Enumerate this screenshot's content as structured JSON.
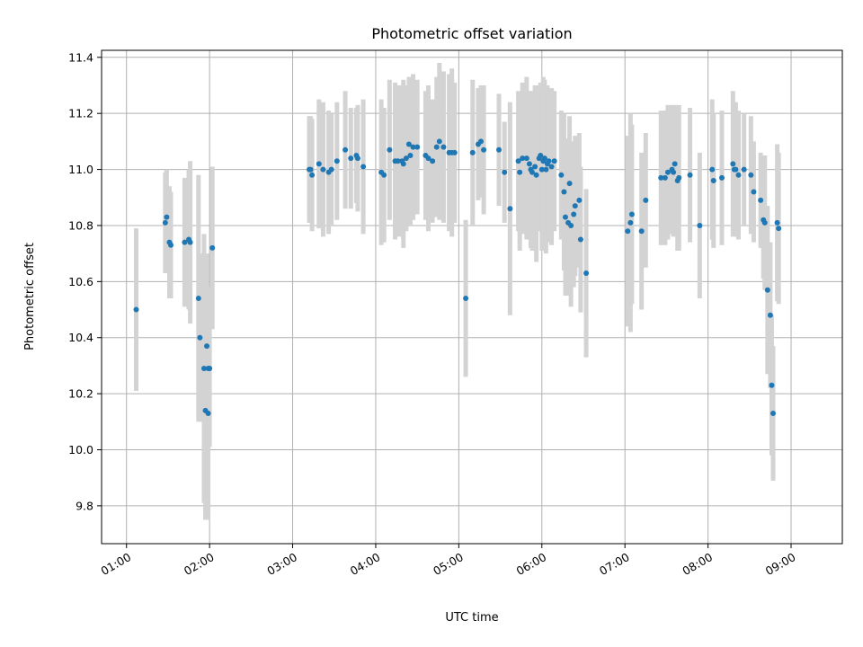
{
  "chart_data": {
    "type": "scatter",
    "title": "Photometric offset variation",
    "xlabel": "UTC time",
    "ylabel": "Photometric offset",
    "xlim": [
      "00:42",
      "09:37"
    ],
    "ylim": [
      9.665,
      11.425
    ],
    "x_tick_labels": [
      "01:00",
      "02:00",
      "03:00",
      "04:00",
      "05:00",
      "06:00",
      "07:00",
      "08:00",
      "09:00"
    ],
    "y_tick_labels": [
      "9.8",
      "10.0",
      "10.2",
      "10.4",
      "10.6",
      "10.8",
      "11.0",
      "11.2",
      "11.4"
    ],
    "y_ticks": [
      9.8,
      10.0,
      10.2,
      10.4,
      10.6,
      10.8,
      11.0,
      11.2,
      11.4
    ],
    "grid": true,
    "colors": {
      "point": "#1f77b4",
      "errorbar": "#d3d3d3",
      "grid": "#b0b0b0"
    },
    "series": [
      {
        "x": [
          "01:07",
          "01:28",
          "01:29",
          "01:31",
          "01:32",
          "01:42",
          "01:45",
          "01:46",
          "01:52",
          "01:53",
          "01:56",
          "01:57",
          "01:58",
          "01:59",
          "01:59",
          "02:00",
          "02:02",
          "03:12",
          "03:13",
          "03:14",
          "03:19",
          "03:22",
          "03:26",
          "03:28",
          "03:32",
          "03:38",
          "03:42",
          "03:46",
          "03:47",
          "03:51",
          "04:04",
          "04:06",
          "04:10",
          "04:14",
          "04:16",
          "04:19",
          "04:20",
          "04:22",
          "04:24",
          "04:25",
          "04:27",
          "04:30",
          "04:36",
          "04:38",
          "04:41",
          "04:44",
          "04:46",
          "04:49",
          "04:53",
          "04:55",
          "04:57",
          "05:05",
          "05:10",
          "05:14",
          "05:16",
          "05:18",
          "05:29",
          "05:33",
          "05:37",
          "05:43",
          "05:44",
          "05:46",
          "05:49",
          "05:51",
          "05:52",
          "05:53",
          "05:55",
          "05:56",
          "05:58",
          "05:59",
          "06:00",
          "06:01",
          "06:02",
          "06:03",
          "06:04",
          "06:05",
          "06:07",
          "06:09",
          "06:14",
          "06:16",
          "06:17",
          "06:19",
          "06:20",
          "06:21",
          "06:23",
          "06:24",
          "06:27",
          "06:28",
          "06:32",
          "07:02",
          "07:04",
          "07:05",
          "07:12",
          "07:15",
          "07:26",
          "07:29",
          "07:31",
          "07:34",
          "07:35",
          "07:36",
          "07:38",
          "07:39",
          "07:47",
          "07:54",
          "08:03",
          "08:04",
          "08:10",
          "08:18",
          "08:19",
          "08:20",
          "08:22",
          "08:26",
          "08:31",
          "08:33",
          "08:38",
          "08:40",
          "08:41",
          "08:43",
          "08:45",
          "08:46",
          "08:47",
          "08:50",
          "08:51"
        ],
        "y": [
          10.5,
          10.81,
          10.83,
          10.74,
          10.73,
          10.74,
          10.75,
          10.74,
          10.54,
          10.4,
          10.29,
          10.14,
          10.37,
          10.29,
          10.13,
          10.29,
          10.72,
          11.0,
          11.0,
          10.98,
          11.02,
          11.0,
          10.99,
          11.0,
          11.03,
          11.07,
          11.04,
          11.05,
          11.04,
          11.01,
          10.99,
          10.98,
          11.07,
          11.03,
          11.03,
          11.03,
          11.02,
          11.04,
          11.09,
          11.05,
          11.08,
          11.08,
          11.05,
          11.04,
          11.03,
          11.08,
          11.1,
          11.08,
          11.06,
          11.06,
          11.06,
          10.54,
          11.06,
          11.09,
          11.1,
          11.07,
          11.07,
          10.99,
          10.86,
          11.03,
          10.99,
          11.04,
          11.04,
          11.02,
          11.0,
          10.99,
          11.01,
          10.98,
          11.04,
          11.05,
          11.0,
          11.03,
          11.04,
          11.0,
          11.02,
          11.03,
          11.01,
          11.03,
          10.98,
          10.92,
          10.83,
          10.81,
          10.95,
          10.8,
          10.84,
          10.87,
          10.89,
          10.75,
          10.63,
          10.78,
          10.81,
          10.84,
          10.78,
          10.89,
          10.97,
          10.97,
          10.99,
          11.0,
          10.99,
          11.02,
          10.96,
          10.97,
          10.98,
          10.8,
          11.0,
          10.96,
          10.97,
          11.02,
          11.0,
          11.0,
          10.98,
          11.0,
          10.98,
          10.92,
          10.89,
          10.82,
          10.81,
          10.57,
          10.48,
          10.23,
          10.13,
          10.81,
          10.79
        ],
        "yerr": [
          0.29,
          0.18,
          0.17,
          0.2,
          0.19,
          0.23,
          0.25,
          0.29,
          0.44,
          0.3,
          0.48,
          0.39,
          0.33,
          0.29,
          0.38,
          0.28,
          0.29,
          0.19,
          0.19,
          0.2,
          0.23,
          0.24,
          0.22,
          0.2,
          0.21,
          0.21,
          0.18,
          0.17,
          0.19,
          0.24,
          0.26,
          0.24,
          0.25,
          0.28,
          0.27,
          0.27,
          0.3,
          0.26,
          0.24,
          0.25,
          0.26,
          0.24,
          0.23,
          0.26,
          0.22,
          0.25,
          0.28,
          0.27,
          0.28,
          0.3,
          0.25,
          0.28,
          0.26,
          0.2,
          0.2,
          0.23,
          0.2,
          0.18,
          0.38,
          0.25,
          0.28,
          0.27,
          0.29,
          0.26,
          0.28,
          0.28,
          0.29,
          0.31,
          0.26,
          0.26,
          0.29,
          0.3,
          0.28,
          0.3,
          0.28,
          0.26,
          0.28,
          0.25,
          0.23,
          0.28,
          0.28,
          0.26,
          0.24,
          0.29,
          0.26,
          0.25,
          0.24,
          0.26,
          0.3,
          0.34,
          0.39,
          0.32,
          0.28,
          0.24,
          0.24,
          0.24,
          0.24,
          0.23,
          0.23,
          0.21,
          0.25,
          0.26,
          0.24,
          0.26,
          0.25,
          0.24,
          0.24,
          0.26,
          0.21,
          0.24,
          0.23,
          0.2,
          0.21,
          0.18,
          0.17,
          0.21,
          0.24,
          0.3,
          0.26,
          0.25,
          0.24,
          0.28,
          0.27
        ]
      }
    ]
  }
}
